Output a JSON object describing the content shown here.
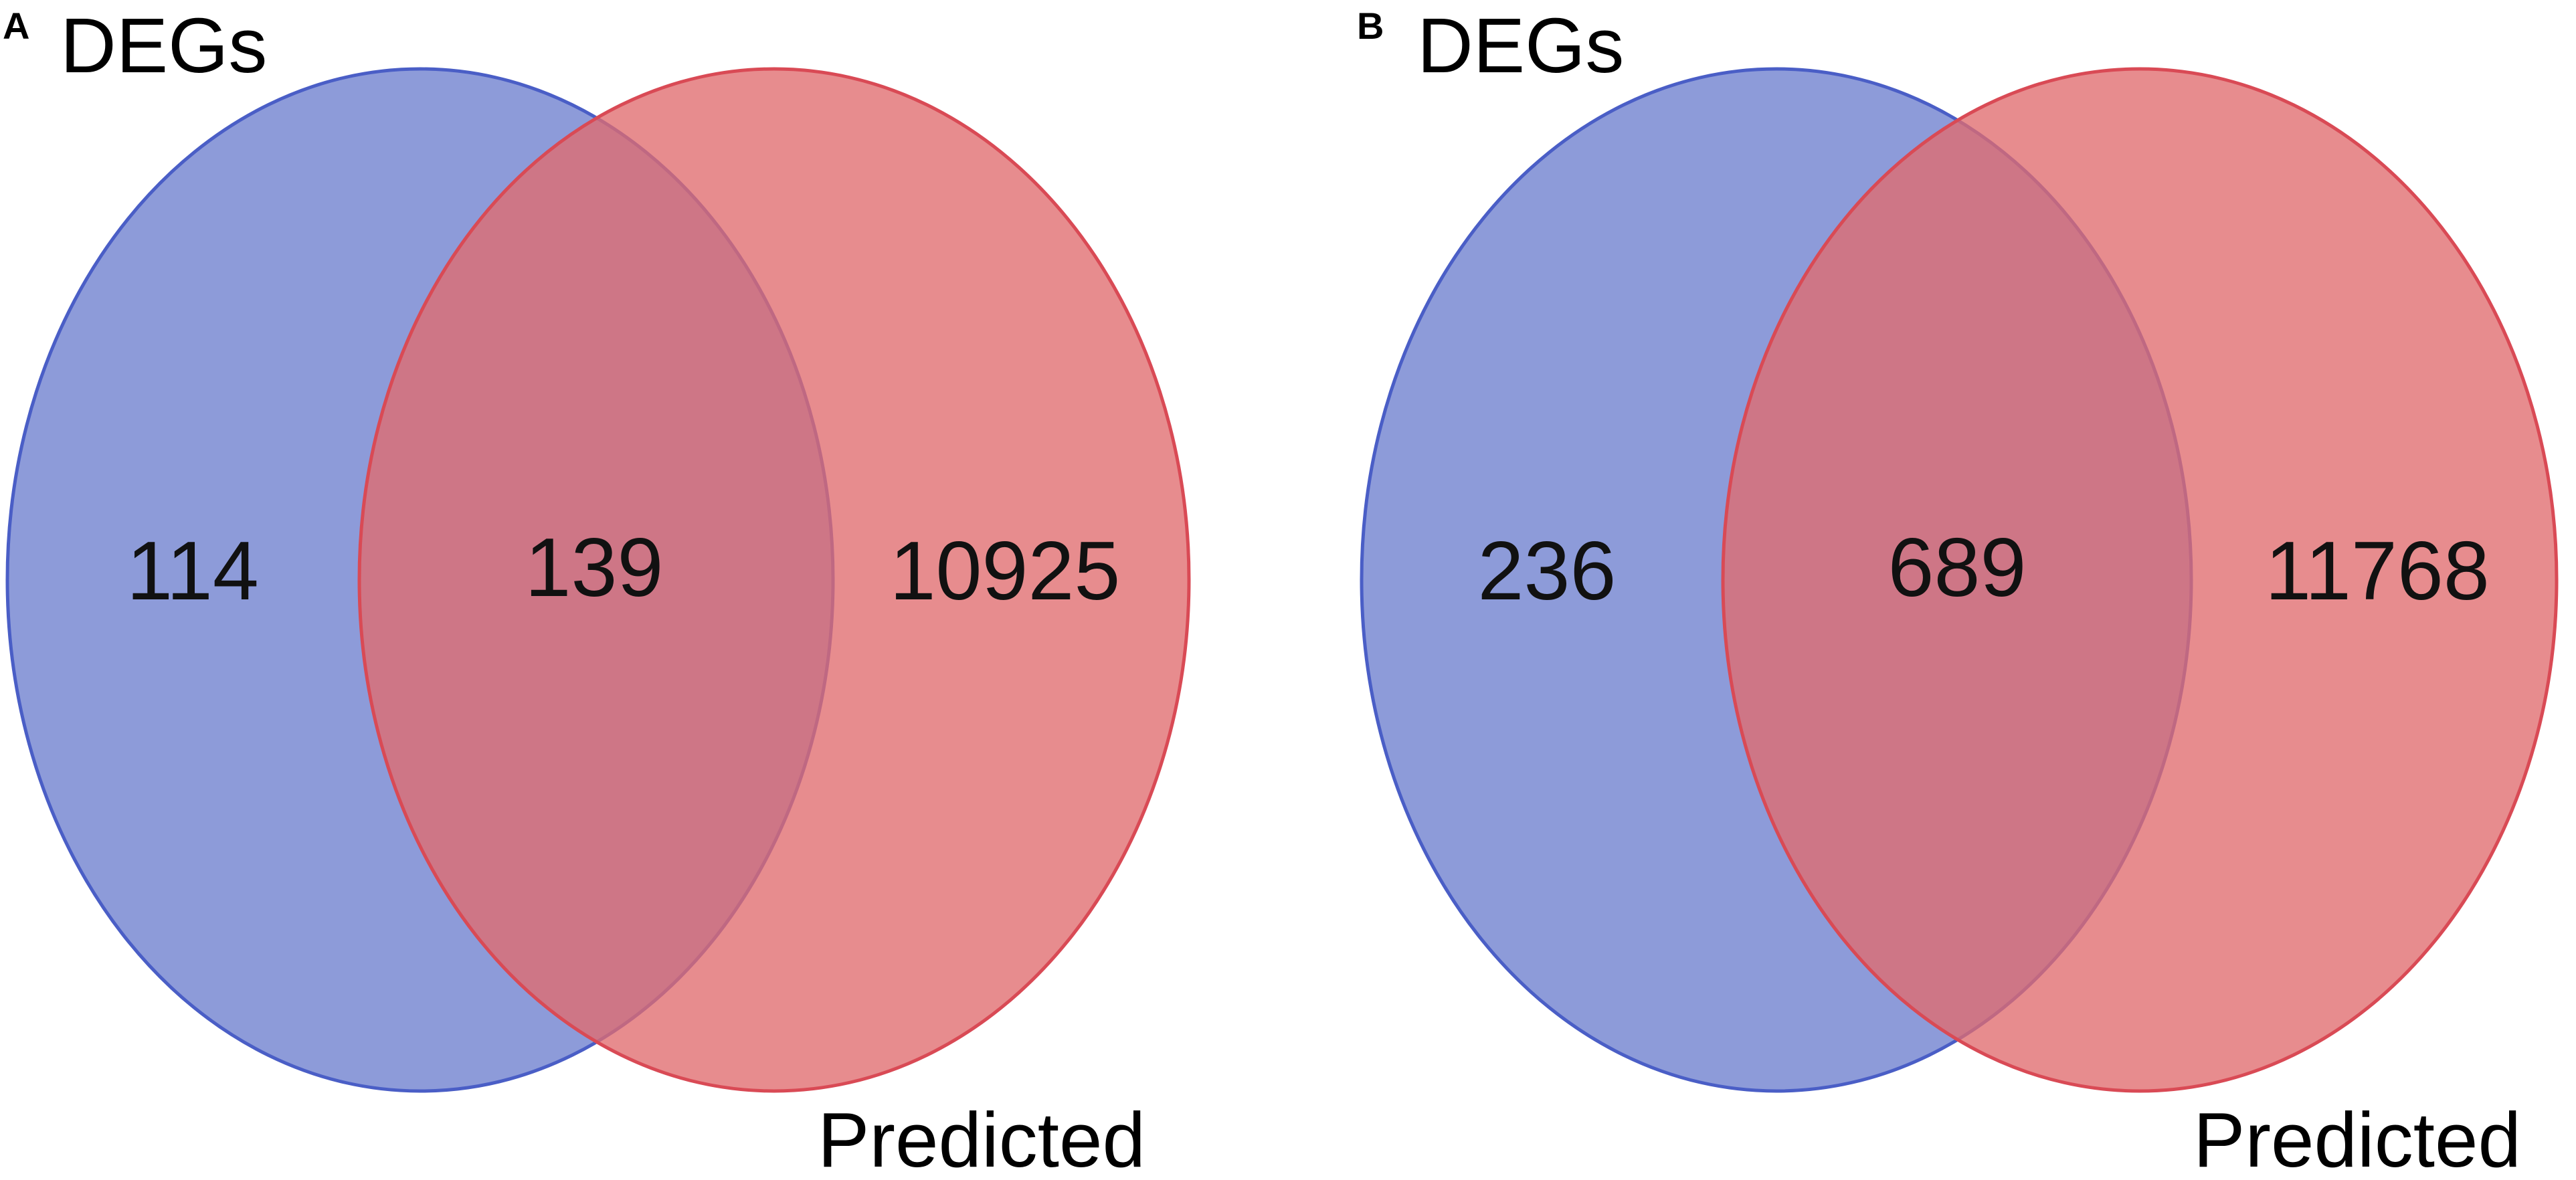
{
  "colors": {
    "set_a_fill": "#7082d0",
    "set_a_stroke": "#4a5ec6",
    "set_b_fill": "#e06c6e",
    "set_b_stroke": "#d94a55",
    "background": "#ffffff"
  },
  "panels": [
    {
      "letter": "A",
      "set_a_label": "DEGs",
      "set_b_label": "Predicted",
      "only_a": "114",
      "intersection": "139",
      "only_b": "10925"
    },
    {
      "letter": "B",
      "set_a_label": "DEGs",
      "set_b_label": "Predicted",
      "only_a": "236",
      "intersection": "689",
      "only_b": "11768"
    }
  ]
}
